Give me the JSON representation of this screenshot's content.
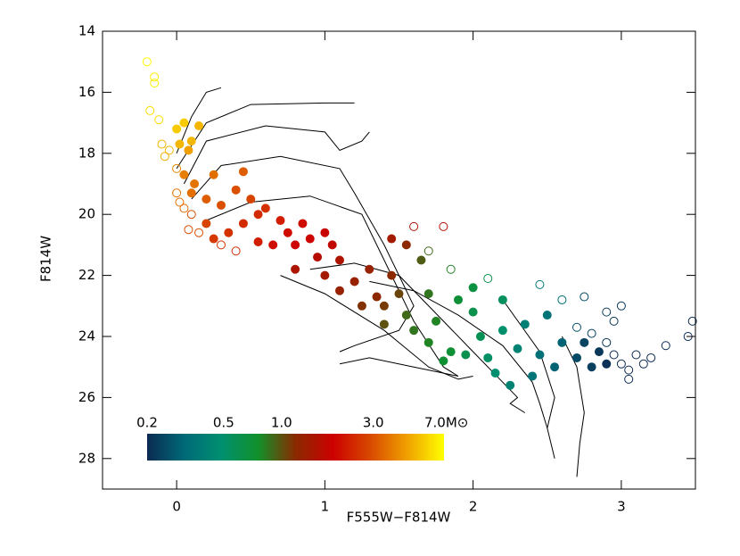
{
  "chart_data": {
    "type": "scatter",
    "x_label": "F555W−F814W",
    "y_label": "F814W",
    "xlim": [
      -0.5,
      3.5
    ],
    "ylim": [
      29,
      14
    ],
    "xticks": [
      0,
      1,
      2,
      3
    ],
    "yticks": [
      14,
      16,
      18,
      20,
      22,
      24,
      26,
      28
    ],
    "line_color": "#000000",
    "lines": [
      {
        "x": [
          0.0,
          0.1,
          0.2,
          0.3
        ],
        "y": [
          18.0,
          16.8,
          16.0,
          15.85
        ]
      },
      {
        "x": [
          0.0,
          0.2,
          0.5,
          1.0,
          1.2
        ],
        "y": [
          18.5,
          17.0,
          16.4,
          16.35,
          16.35
        ]
      },
      {
        "x": [
          0.05,
          0.2,
          0.6,
          1.0,
          1.1,
          1.25,
          1.3
        ],
        "y": [
          19.0,
          17.6,
          17.1,
          17.3,
          17.9,
          17.6,
          17.3
        ]
      },
      {
        "x": [
          0.1,
          0.3,
          0.7,
          1.1,
          1.2,
          1.4,
          1.5,
          1.6,
          1.5,
          1.2,
          1.1
        ],
        "y": [
          19.5,
          18.4,
          18.1,
          18.5,
          19.3,
          21.0,
          22.0,
          23.0,
          23.8,
          24.3,
          24.5
        ]
      },
      {
        "x": [
          0.2,
          0.5,
          0.9,
          1.25,
          1.4,
          1.6,
          1.8,
          1.9,
          1.6,
          1.3,
          1.1
        ],
        "y": [
          20.2,
          19.6,
          19.4,
          20.0,
          21.5,
          23.5,
          25.0,
          25.3,
          25.0,
          24.7,
          24.9
        ]
      },
      {
        "x": [
          0.7,
          1.0,
          1.4,
          1.7,
          1.9,
          2.0
        ],
        "y": [
          22.0,
          22.6,
          23.8,
          25.0,
          25.4,
          25.3
        ]
      },
      {
        "x": [
          0.9,
          1.2,
          1.5,
          1.8,
          2.0,
          2.2,
          2.3,
          2.25,
          2.35
        ],
        "y": [
          21.8,
          21.6,
          22.0,
          23.5,
          24.5,
          25.5,
          26.0,
          26.2,
          26.5
        ]
      },
      {
        "x": [
          1.3,
          1.6,
          1.9,
          2.2,
          2.4,
          2.45,
          2.5
        ],
        "y": [
          22.2,
          22.5,
          23.3,
          24.3,
          25.5,
          26.2,
          27.0
        ]
      },
      {
        "x": [
          2.2,
          2.45,
          2.55,
          2.5,
          2.55
        ],
        "y": [
          22.8,
          24.5,
          26.0,
          27.0,
          28.0
        ]
      },
      {
        "x": [
          2.6,
          2.7,
          2.75,
          2.72,
          2.7
        ],
        "y": [
          24.0,
          25.0,
          26.5,
          27.5,
          28.6
        ]
      }
    ],
    "points": [
      {
        "x": -0.2,
        "y": 15.0,
        "m": 7,
        "open": true
      },
      {
        "x": -0.15,
        "y": 15.5,
        "m": 6.5,
        "open": true
      },
      {
        "x": -0.15,
        "y": 15.7,
        "m": 6.5,
        "open": true
      },
      {
        "x": -0.18,
        "y": 16.6,
        "m": 6,
        "open": true
      },
      {
        "x": -0.12,
        "y": 16.9,
        "m": 6,
        "open": true
      },
      {
        "x": 0.0,
        "y": 17.2,
        "m": 5.5,
        "open": false
      },
      {
        "x": 0.05,
        "y": 17.0,
        "m": 5.5,
        "open": false
      },
      {
        "x": 0.1,
        "y": 17.6,
        "m": 5,
        "open": false
      },
      {
        "x": 0.02,
        "y": 17.7,
        "m": 5,
        "open": false
      },
      {
        "x": -0.05,
        "y": 17.9,
        "m": 5,
        "open": true
      },
      {
        "x": -0.08,
        "y": 18.1,
        "m": 4.8,
        "open": true
      },
      {
        "x": -0.1,
        "y": 17.7,
        "m": 5,
        "open": true
      },
      {
        "x": 0.08,
        "y": 17.9,
        "m": 4.5,
        "open": false
      },
      {
        "x": 0.15,
        "y": 17.1,
        "m": 5,
        "open": false
      },
      {
        "x": 0.0,
        "y": 18.5,
        "m": 4,
        "open": true
      },
      {
        "x": 0.05,
        "y": 18.7,
        "m": 3.8,
        "open": false
      },
      {
        "x": 0.0,
        "y": 19.3,
        "m": 3.5,
        "open": true
      },
      {
        "x": 0.02,
        "y": 19.6,
        "m": 3.5,
        "open": true
      },
      {
        "x": 0.05,
        "y": 19.8,
        "m": 3.4,
        "open": true
      },
      {
        "x": 0.1,
        "y": 19.3,
        "m": 3.5,
        "open": false
      },
      {
        "x": 0.12,
        "y": 19.0,
        "m": 3.6,
        "open": false
      },
      {
        "x": 0.2,
        "y": 19.5,
        "m": 3.2,
        "open": false
      },
      {
        "x": 0.25,
        "y": 18.7,
        "m": 3.5,
        "open": false
      },
      {
        "x": 0.3,
        "y": 19.7,
        "m": 3,
        "open": false
      },
      {
        "x": 0.45,
        "y": 18.6,
        "m": 3.2,
        "open": false
      },
      {
        "x": 0.4,
        "y": 19.2,
        "m": 3,
        "open": false
      },
      {
        "x": 0.5,
        "y": 19.5,
        "m": 2.8,
        "open": false
      },
      {
        "x": 0.1,
        "y": 20.0,
        "m": 3,
        "open": true
      },
      {
        "x": 0.08,
        "y": 20.5,
        "m": 3,
        "open": true
      },
      {
        "x": 0.15,
        "y": 20.6,
        "m": 2.9,
        "open": true
      },
      {
        "x": 0.2,
        "y": 20.3,
        "m": 2.8,
        "open": false
      },
      {
        "x": 0.25,
        "y": 20.8,
        "m": 2.6,
        "open": false
      },
      {
        "x": 0.3,
        "y": 21.0,
        "m": 2.5,
        "open": true
      },
      {
        "x": 0.35,
        "y": 20.6,
        "m": 2.5,
        "open": false
      },
      {
        "x": 0.45,
        "y": 20.3,
        "m": 2.4,
        "open": false
      },
      {
        "x": 0.55,
        "y": 20.0,
        "m": 2.4,
        "open": false
      },
      {
        "x": 0.6,
        "y": 19.8,
        "m": 2.5,
        "open": false
      },
      {
        "x": 0.7,
        "y": 20.2,
        "m": 2.2,
        "open": false
      },
      {
        "x": 0.75,
        "y": 20.6,
        "m": 2,
        "open": false
      },
      {
        "x": 0.85,
        "y": 20.3,
        "m": 2,
        "open": false
      },
      {
        "x": 0.9,
        "y": 20.8,
        "m": 1.9,
        "open": false
      },
      {
        "x": 1.0,
        "y": 20.6,
        "m": 1.8,
        "open": false
      },
      {
        "x": 0.65,
        "y": 21.0,
        "m": 2,
        "open": false
      },
      {
        "x": 0.4,
        "y": 21.2,
        "m": 2.4,
        "open": true
      },
      {
        "x": 0.55,
        "y": 20.9,
        "m": 2.2,
        "open": false
      },
      {
        "x": 0.8,
        "y": 21.0,
        "m": 1.9,
        "open": false
      },
      {
        "x": 0.95,
        "y": 21.4,
        "m": 1.6,
        "open": false
      },
      {
        "x": 1.05,
        "y": 21.0,
        "m": 1.7,
        "open": false
      },
      {
        "x": 1.1,
        "y": 21.5,
        "m": 1.5,
        "open": false
      },
      {
        "x": 0.8,
        "y": 21.8,
        "m": 1.5,
        "open": false
      },
      {
        "x": 1.0,
        "y": 22.0,
        "m": 1.4,
        "open": false
      },
      {
        "x": 1.1,
        "y": 22.5,
        "m": 1.3,
        "open": false
      },
      {
        "x": 1.2,
        "y": 22.2,
        "m": 1.3,
        "open": false
      },
      {
        "x": 1.3,
        "y": 21.8,
        "m": 1.3,
        "open": false
      },
      {
        "x": 1.35,
        "y": 22.7,
        "m": 1.2,
        "open": false
      },
      {
        "x": 1.4,
        "y": 23.0,
        "m": 1.1,
        "open": false
      },
      {
        "x": 1.25,
        "y": 23.0,
        "m": 1.15,
        "open": false
      },
      {
        "x": 1.45,
        "y": 22.0,
        "m": 1.2,
        "open": false
      },
      {
        "x": 1.5,
        "y": 22.6,
        "m": 1.05,
        "open": false
      },
      {
        "x": 1.4,
        "y": 23.6,
        "m": 1.0,
        "open": false
      },
      {
        "x": 1.45,
        "y": 20.8,
        "m": 1.4,
        "open": false
      },
      {
        "x": 1.6,
        "y": 20.4,
        "m": 1.5,
        "open": true
      },
      {
        "x": 1.8,
        "y": 20.4,
        "m": 1.6,
        "open": true
      },
      {
        "x": 1.55,
        "y": 21.0,
        "m": 1.2,
        "open": false
      },
      {
        "x": 1.55,
        "y": 23.3,
        "m": 0.9,
        "open": false
      },
      {
        "x": 1.6,
        "y": 23.8,
        "m": 0.85,
        "open": false
      },
      {
        "x": 1.7,
        "y": 22.6,
        "m": 0.85,
        "open": false
      },
      {
        "x": 1.75,
        "y": 23.5,
        "m": 0.8,
        "open": false
      },
      {
        "x": 1.7,
        "y": 24.2,
        "m": 0.8,
        "open": false
      },
      {
        "x": 1.65,
        "y": 21.5,
        "m": 0.95,
        "open": false
      },
      {
        "x": 1.7,
        "y": 21.2,
        "m": 0.9,
        "open": true
      },
      {
        "x": 1.85,
        "y": 21.8,
        "m": 0.8,
        "open": true
      },
      {
        "x": 1.85,
        "y": 24.5,
        "m": 0.7,
        "open": false
      },
      {
        "x": 1.8,
        "y": 24.8,
        "m": 0.72,
        "open": false
      },
      {
        "x": 1.9,
        "y": 22.8,
        "m": 0.7,
        "open": false
      },
      {
        "x": 2.0,
        "y": 23.2,
        "m": 0.62,
        "open": false
      },
      {
        "x": 2.05,
        "y": 24.0,
        "m": 0.58,
        "open": false
      },
      {
        "x": 1.95,
        "y": 24.6,
        "m": 0.6,
        "open": false
      },
      {
        "x": 2.1,
        "y": 24.7,
        "m": 0.52,
        "open": false
      },
      {
        "x": 2.15,
        "y": 25.2,
        "m": 0.48,
        "open": false
      },
      {
        "x": 2.2,
        "y": 23.8,
        "m": 0.5,
        "open": false
      },
      {
        "x": 2.25,
        "y": 25.6,
        "m": 0.42,
        "open": false
      },
      {
        "x": 2.3,
        "y": 24.4,
        "m": 0.42,
        "open": false
      },
      {
        "x": 2.0,
        "y": 22.4,
        "m": 0.65,
        "open": false
      },
      {
        "x": 2.1,
        "y": 22.1,
        "m": 0.6,
        "open": true
      },
      {
        "x": 2.2,
        "y": 22.8,
        "m": 0.55,
        "open": false
      },
      {
        "x": 2.4,
        "y": 25.3,
        "m": 0.35,
        "open": false
      },
      {
        "x": 2.35,
        "y": 23.6,
        "m": 0.4,
        "open": false
      },
      {
        "x": 2.45,
        "y": 24.6,
        "m": 0.34,
        "open": false
      },
      {
        "x": 2.5,
        "y": 23.3,
        "m": 0.35,
        "open": false
      },
      {
        "x": 2.55,
        "y": 25.0,
        "m": 0.3,
        "open": false
      },
      {
        "x": 2.6,
        "y": 24.2,
        "m": 0.3,
        "open": false
      },
      {
        "x": 2.45,
        "y": 22.3,
        "m": 0.38,
        "open": true
      },
      {
        "x": 2.6,
        "y": 22.8,
        "m": 0.33,
        "open": true
      },
      {
        "x": 2.7,
        "y": 24.7,
        "m": 0.25,
        "open": false
      },
      {
        "x": 2.75,
        "y": 24.2,
        "m": 0.24,
        "open": false
      },
      {
        "x": 2.8,
        "y": 25.0,
        "m": 0.23,
        "open": false
      },
      {
        "x": 2.85,
        "y": 24.5,
        "m": 0.22,
        "open": false
      },
      {
        "x": 2.9,
        "y": 24.9,
        "m": 0.21,
        "open": false
      },
      {
        "x": 2.7,
        "y": 23.7,
        "m": 0.26,
        "open": true
      },
      {
        "x": 2.8,
        "y": 23.9,
        "m": 0.24,
        "open": true
      },
      {
        "x": 2.9,
        "y": 24.2,
        "m": 0.22,
        "open": true
      },
      {
        "x": 2.95,
        "y": 24.6,
        "m": 0.2,
        "open": true
      },
      {
        "x": 3.0,
        "y": 24.9,
        "m": 0.2,
        "open": true
      },
      {
        "x": 3.05,
        "y": 25.1,
        "m": 0.2,
        "open": true
      },
      {
        "x": 3.1,
        "y": 24.6,
        "m": 0.2,
        "open": true
      },
      {
        "x": 3.15,
        "y": 24.9,
        "m": 0.2,
        "open": true
      },
      {
        "x": 3.2,
        "y": 24.7,
        "m": 0.2,
        "open": true
      },
      {
        "x": 2.95,
        "y": 23.5,
        "m": 0.22,
        "open": true
      },
      {
        "x": 2.9,
        "y": 23.2,
        "m": 0.23,
        "open": true
      },
      {
        "x": 3.0,
        "y": 23.0,
        "m": 0.22,
        "open": true
      },
      {
        "x": 2.75,
        "y": 22.7,
        "m": 0.25,
        "open": true
      },
      {
        "x": 3.3,
        "y": 24.3,
        "m": 0.2,
        "open": true
      },
      {
        "x": 3.45,
        "y": 24.0,
        "m": 0.2,
        "open": true
      },
      {
        "x": 3.48,
        "y": 23.5,
        "m": 0.2,
        "open": true
      },
      {
        "x": 3.05,
        "y": 25.4,
        "m": 0.2,
        "open": true
      }
    ],
    "colorbar": {
      "lim": [
        0.2,
        7.0
      ],
      "log": true,
      "ticks": [
        0.2,
        0.5,
        {
          "value": 1.0,
          "label": "1.0"
        },
        {
          "value": 3.0,
          "label": "3.0"
        },
        {
          "value": 7.0,
          "label": "7.0M⊙"
        }
      ],
      "colors": [
        "#0b2a52",
        "#006a78",
        "#009070",
        "#12902a",
        "#8a2a00",
        "#cc0000",
        "#d84800",
        "#f0a000",
        "#ffff00"
      ]
    }
  }
}
